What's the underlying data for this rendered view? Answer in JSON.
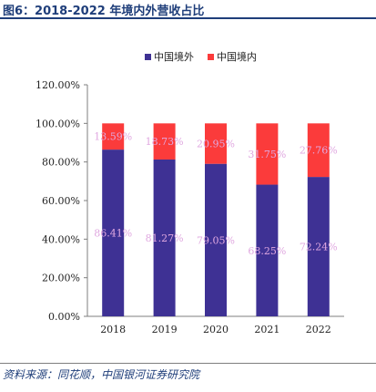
{
  "figure_title": "图6：2018-2022 年境内外营收占比",
  "source": "资料来源：同花顺，中国银河证券研究院",
  "colors": {
    "overseas": "#3e3194",
    "domestic": "#fb3b3b",
    "label": "#e0a8e0",
    "axis": "#7f7f7f",
    "accent": "#1f3e7a"
  },
  "chart_data": {
    "type": "bar",
    "stacked": true,
    "categories": [
      "2018",
      "2019",
      "2020",
      "2021",
      "2022"
    ],
    "series": [
      {
        "name": "中国境外",
        "values": [
          86.41,
          81.27,
          79.05,
          68.25,
          72.24
        ],
        "labels": [
          "86.41%",
          "81.27%",
          "79.05%",
          "68.25%",
          "72.24%"
        ]
      },
      {
        "name": "中国境内",
        "values": [
          13.59,
          18.73,
          20.95,
          31.75,
          27.76
        ],
        "labels": [
          "13.59%",
          "18.73%",
          "20.95%",
          "31.75%",
          "27.76%"
        ]
      }
    ],
    "y_ticks": [
      "0.00%",
      "20.00%",
      "40.00%",
      "60.00%",
      "80.00%",
      "100.00%",
      "120.00%"
    ],
    "ylim": [
      0,
      120
    ],
    "legend_position": "top-center",
    "grid": false
  }
}
